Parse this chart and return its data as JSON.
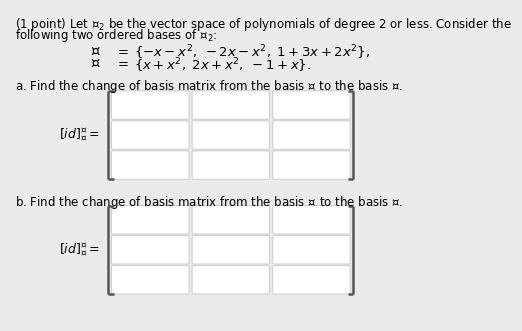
{
  "background_color": "#ebebeb",
  "text_color": "#000000",
  "box_color": "#ffffff",
  "box_edge_color": "#cccccc",
  "bracket_color": "#555555",
  "title_line1": "(1 point) Let $\\mathcal{P}_2$ be the vector space of polynomials of degree $2$ or less. Consider the",
  "title_line2": "following two ordered bases of $\\mathcal{P}_2$:",
  "basis_B_left": "$\\mathcal{B}$",
  "basis_B_eq": "$=$",
  "basis_B_right": "$\\{-x - x^2,\\; -2x - x^2,\\; 1 + 3x + 2x^2\\},$",
  "basis_C_left": "$\\mathcal{C}$",
  "basis_C_eq": "$=$",
  "basis_C_right": "$\\{x + x^2,\\; 2x + x^2,\\; -1 + x\\}.$",
  "part_a": "a. Find the change of basis matrix from the basis $\\mathcal{B}$ to the basis $\\mathcal{C}$.",
  "label_a": "$[id]^{\\mathcal{C}}_{\\mathcal{B}} =$",
  "part_b": "b. Find the change of basis matrix from the basis $\\mathcal{C}$ to the basis $\\mathcal{B}$.",
  "label_b": "$[id]^{\\mathcal{B}}_{\\mathcal{C}} =$",
  "font_size": 8.5,
  "label_font_size": 9.0,
  "basis_font_size": 9.5
}
